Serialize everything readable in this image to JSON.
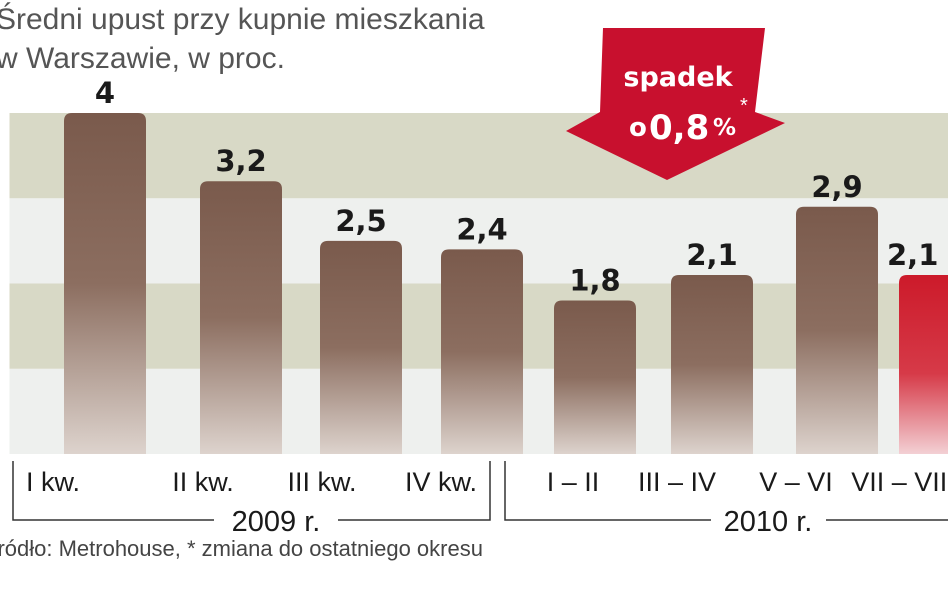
{
  "chart_data": {
    "type": "bar",
    "title": "Średni upust przy kupnie mieszkania",
    "subtitle": "w Warszawie, w proc.",
    "categories": [
      "I kw.",
      "II kw.",
      "III kw.",
      "IV kw.",
      "I – II",
      "III – IV",
      "V – VI",
      "VII – VIII"
    ],
    "values": [
      4,
      3.2,
      2.5,
      2.4,
      1.8,
      2.1,
      2.9,
      2.1
    ],
    "value_labels": [
      "4",
      "3,2",
      "2,5",
      "2,4",
      "1,8",
      "2,1",
      "2,9",
      "2,1"
    ],
    "highlight_index": 7,
    "groups": [
      {
        "label": "2009 r.",
        "from": 0,
        "to": 3
      },
      {
        "label": "2010 r.",
        "from": 4,
        "to": 7
      }
    ],
    "ylim": [
      0,
      4
    ],
    "grid": "alternating bands",
    "source": "Źródło: Metrohouse, * zmiana do ostatniego okresu",
    "callout": {
      "line1": "spadek",
      "prefix": "o",
      "value": "0,8",
      "unit": "%",
      "mark": "*"
    },
    "colors": {
      "bar": "#86685a",
      "bar_highlight": "#d0202e",
      "band_dark": "#d8d9c6",
      "band_light": "#eef0ee",
      "arrow": "#c8102e"
    }
  }
}
